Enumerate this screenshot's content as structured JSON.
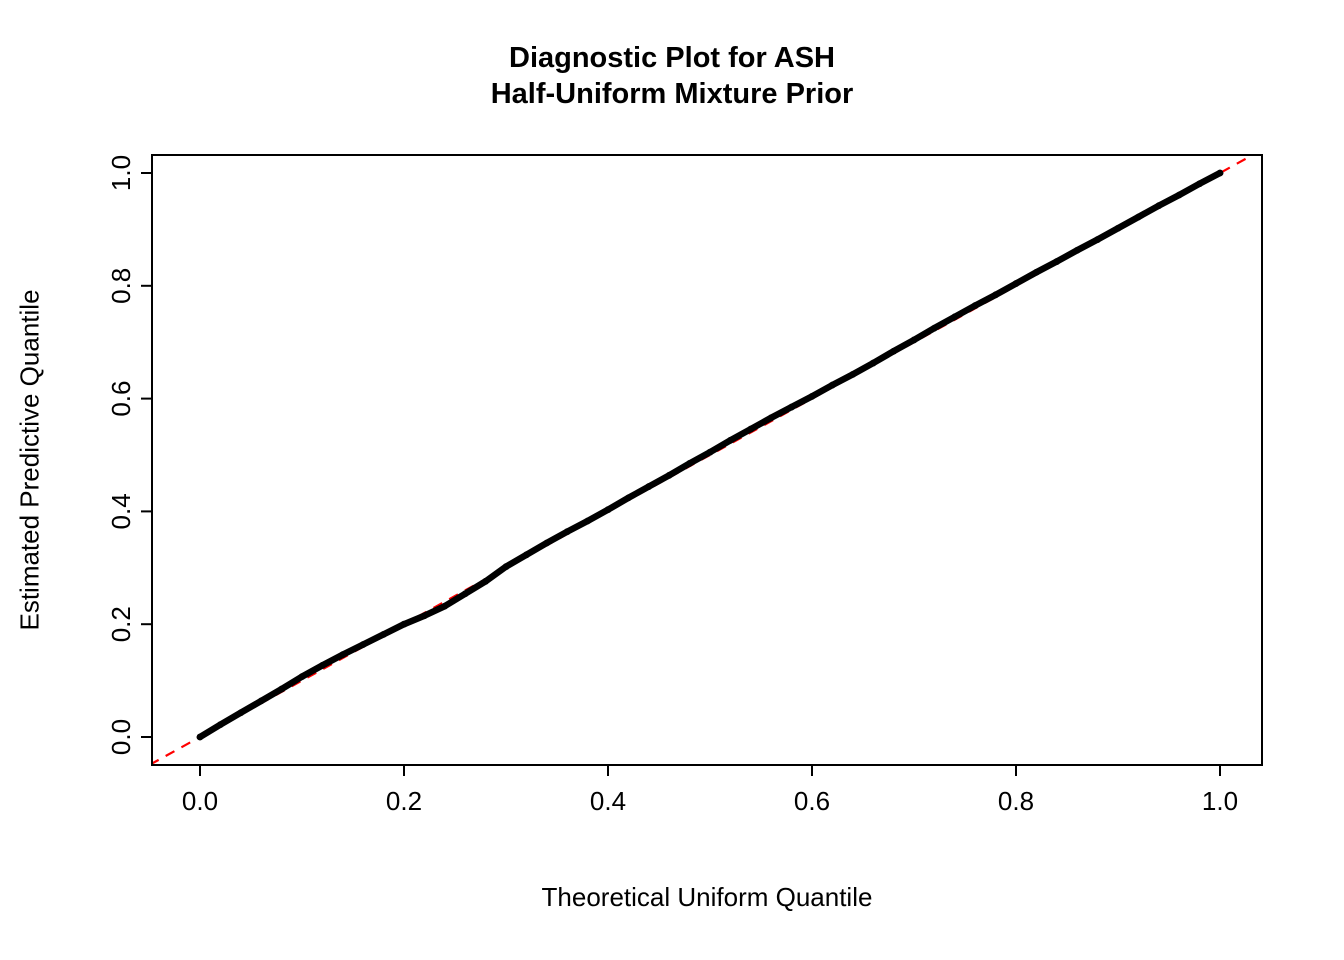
{
  "figure": {
    "title_line1": "Diagnostic Plot for ASH",
    "title_line2": "Half-Uniform Mixture Prior"
  },
  "chart_data": {
    "type": "scatter",
    "title": "Diagnostic Plot for ASH\nHalf-Uniform Mixture Prior",
    "xlabel": "Theoretical Uniform Quantile",
    "ylabel": "Estimated Predictive Quantile",
    "xlim": [
      -0.048,
      1.042
    ],
    "ylim": [
      -0.05,
      1.032
    ],
    "grid": false,
    "legend": "none",
    "xticks": [
      "0.0",
      "0.2",
      "0.4",
      "0.6",
      "0.8",
      "1.0"
    ],
    "yticks": [
      "0.0",
      "0.2",
      "0.4",
      "0.6",
      "0.8",
      "1.0"
    ],
    "xtick_values": [
      0.0,
      0.2,
      0.4,
      0.6,
      0.8,
      1.0
    ],
    "ytick_values": [
      0.0,
      0.2,
      0.4,
      0.6,
      0.8,
      1.0
    ],
    "reference_line": {
      "description": "identity line y = x",
      "intercept": 0,
      "slope": 1,
      "color": "#ff0000",
      "style": "dashed"
    },
    "series": [
      {
        "name": "estimated-vs-theoretical-quantile",
        "marker": "point",
        "color": "#000000",
        "x": [
          0.0,
          0.02,
          0.04,
          0.06,
          0.08,
          0.1,
          0.12,
          0.14,
          0.16,
          0.18,
          0.2,
          0.22,
          0.24,
          0.26,
          0.28,
          0.3,
          0.32,
          0.34,
          0.36,
          0.38,
          0.4,
          0.42,
          0.44,
          0.46,
          0.48,
          0.5,
          0.52,
          0.54,
          0.56,
          0.58,
          0.6,
          0.62,
          0.64,
          0.66,
          0.68,
          0.7,
          0.72,
          0.74,
          0.76,
          0.78,
          0.8,
          0.82,
          0.84,
          0.86,
          0.88,
          0.9,
          0.92,
          0.94,
          0.96,
          0.98,
          1.0
        ],
        "y": [
          0.0,
          0.022,
          0.043,
          0.064,
          0.085,
          0.107,
          0.127,
          0.146,
          0.164,
          0.182,
          0.2,
          0.215,
          0.232,
          0.254,
          0.276,
          0.302,
          0.323,
          0.344,
          0.364,
          0.383,
          0.403,
          0.424,
          0.444,
          0.464,
          0.485,
          0.505,
          0.526,
          0.546,
          0.566,
          0.585,
          0.604,
          0.624,
          0.643,
          0.663,
          0.684,
          0.704,
          0.725,
          0.745,
          0.765,
          0.784,
          0.804,
          0.824,
          0.843,
          0.863,
          0.882,
          0.902,
          0.922,
          0.942,
          0.961,
          0.981,
          1.0
        ]
      }
    ]
  }
}
